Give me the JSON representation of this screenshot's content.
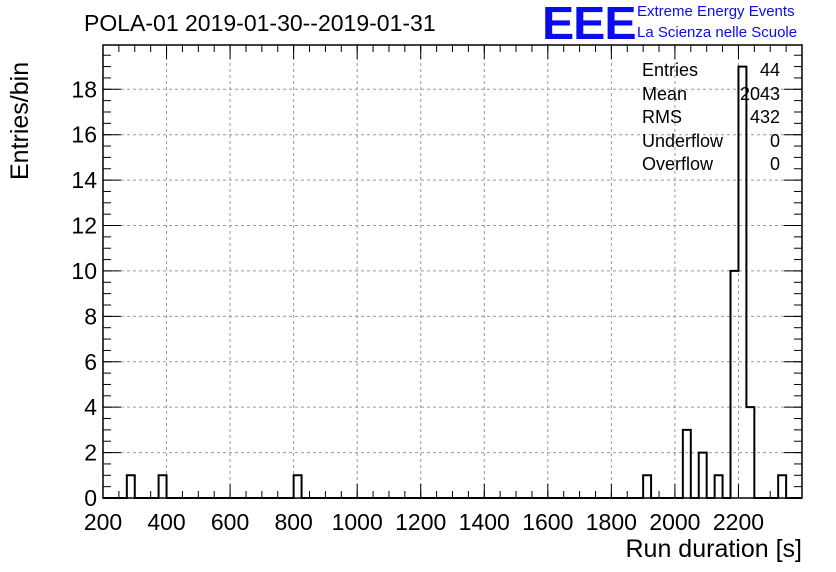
{
  "chart_data": {
    "type": "bar",
    "title": "POLA-01 2019-01-30--2019-01-31",
    "xlabel": "Run duration [s]",
    "ylabel": "Entries/bin",
    "xlim": [
      200,
      2400
    ],
    "ylim": [
      0,
      19.95
    ],
    "bin_width": 25,
    "x_ticks": [
      200,
      400,
      600,
      800,
      1000,
      1200,
      1400,
      1600,
      1800,
      2000,
      2200
    ],
    "y_ticks": [
      0,
      2,
      4,
      6,
      8,
      10,
      12,
      14,
      16,
      18
    ],
    "grid": true,
    "bins": [
      {
        "x": 275,
        "value": 1
      },
      {
        "x": 375,
        "value": 1
      },
      {
        "x": 800,
        "value": 1
      },
      {
        "x": 1900,
        "value": 1
      },
      {
        "x": 2025,
        "value": 3
      },
      {
        "x": 2075,
        "value": 2
      },
      {
        "x": 2125,
        "value": 1
      },
      {
        "x": 2175,
        "value": 10
      },
      {
        "x": 2200,
        "value": 19
      },
      {
        "x": 2225,
        "value": 4
      },
      {
        "x": 2325,
        "value": 1
      }
    ]
  },
  "stats_box": {
    "entries_label": "Entries",
    "entries_value": "44",
    "mean_label": "Mean",
    "mean_value": "2043",
    "rms_label": "RMS",
    "rms_value": "432",
    "underflow_label": "Underflow",
    "underflow_value": "0",
    "overflow_label": "Overflow",
    "overflow_value": "0"
  },
  "logo": {
    "mark": "EEE",
    "line1": "Extreme Energy Events",
    "line2": "La Scienza nelle Scuole",
    "color": "#0b0bf0"
  }
}
